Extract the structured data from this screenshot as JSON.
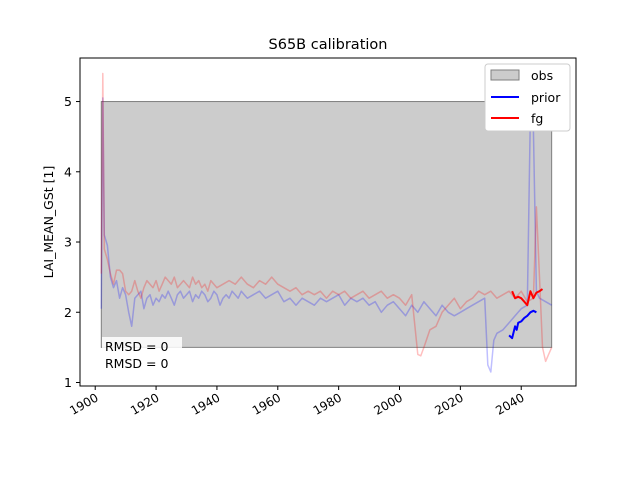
{
  "chart_data": {
    "type": "line",
    "title": "S65B calibration",
    "xlabel": "",
    "ylabel": "LAI_MEAN_GSt [1]",
    "xlim": [
      1895,
      2058
    ],
    "ylim": [
      0.95,
      5.62
    ],
    "xticks": [
      1900,
      1920,
      1940,
      1960,
      1980,
      2000,
      2020,
      2040
    ],
    "yticks": [
      1,
      2,
      3,
      4,
      5
    ],
    "grid": false,
    "legend_position": "top-right",
    "legend": [
      {
        "label": "obs",
        "kind": "patch",
        "color": "#cccccc",
        "edge": "#7f7f7f"
      },
      {
        "label": "prior",
        "kind": "line",
        "color": "#0000ff"
      },
      {
        "label": "fg",
        "kind": "line",
        "color": "#ff0000"
      }
    ],
    "obs_band": {
      "x": [
        1902,
        2050
      ],
      "ymin": 1.5,
      "ymax": 5.0,
      "color": "#cccccc"
    },
    "annotations": [
      {
        "text": "RMSD = 0",
        "color": "#0000ff"
      },
      {
        "text": "RMSD = 0",
        "color": "#ff0000"
      }
    ],
    "series": [
      {
        "color": "#0000ff",
        "alpha": 0.25,
        "style": "faint",
        "x": [
          1902,
          1902.5,
          1903,
          1904,
          1905,
          1906,
          1907,
          1908,
          1909,
          1910,
          1911,
          1912,
          1913,
          1914,
          1915,
          1916,
          1917,
          1918,
          1919,
          1920,
          1921,
          1922,
          1923,
          1924,
          1925,
          1926,
          1927,
          1928,
          1929,
          1930,
          1931,
          1932,
          1933,
          1934,
          1935,
          1936,
          1937,
          1938,
          1939,
          1940,
          1941,
          1942,
          1943,
          1944,
          1945,
          1946,
          1947,
          1948,
          1949,
          1950,
          1952,
          1954,
          1956,
          1958,
          1960,
          1962,
          1964,
          1966,
          1968,
          1970,
          1972,
          1974,
          1976,
          1978,
          1980,
          1982,
          1984,
          1986,
          1988,
          1990,
          1992,
          1994,
          1996,
          1998,
          2000,
          2002,
          2004,
          2006,
          2008,
          2010,
          2012,
          2014,
          2016,
          2018,
          2020,
          2022,
          2024,
          2026,
          2028,
          2029,
          2030,
          2031,
          2032,
          2034,
          2036,
          2038,
          2040,
          2042,
          2043,
          2044,
          2045,
          2046,
          2048,
          2050
        ],
        "y": [
          2.05,
          5.05,
          3.1,
          2.95,
          2.5,
          2.35,
          2.45,
          2.2,
          2.35,
          2.25,
          2.0,
          1.8,
          2.2,
          2.25,
          2.3,
          2.05,
          2.2,
          2.25,
          2.1,
          2.2,
          2.15,
          2.25,
          2.2,
          2.3,
          2.2,
          2.1,
          2.25,
          2.3,
          2.2,
          2.25,
          2.3,
          2.15,
          2.25,
          2.2,
          2.3,
          2.25,
          2.15,
          2.2,
          2.3,
          2.25,
          2.1,
          2.2,
          2.25,
          2.2,
          2.3,
          2.25,
          2.2,
          2.3,
          2.25,
          2.2,
          2.25,
          2.3,
          2.2,
          2.25,
          2.3,
          2.15,
          2.2,
          2.1,
          2.2,
          2.15,
          2.1,
          2.2,
          2.15,
          2.2,
          2.25,
          2.1,
          2.2,
          2.15,
          2.2,
          2.1,
          2.15,
          2.0,
          2.1,
          2.15,
          2.05,
          1.95,
          2.1,
          2.0,
          2.15,
          2.05,
          1.95,
          2.1,
          2.0,
          1.95,
          2.0,
          2.05,
          2.1,
          2.15,
          2.2,
          1.25,
          1.15,
          1.6,
          1.7,
          1.75,
          1.85,
          1.95,
          2.05,
          2.1,
          4.85,
          4.6,
          2.3,
          2.2,
          2.15,
          2.1
        ]
      },
      {
        "color": "#ff0000",
        "alpha": 0.25,
        "style": "faint",
        "x": [
          1902,
          1902.5,
          1903,
          1904,
          1905,
          1906,
          1907,
          1908,
          1909,
          1910,
          1911,
          1912,
          1913,
          1914,
          1915,
          1916,
          1917,
          1918,
          1919,
          1920,
          1921,
          1922,
          1923,
          1924,
          1925,
          1926,
          1927,
          1928,
          1929,
          1930,
          1931,
          1932,
          1933,
          1934,
          1935,
          1936,
          1937,
          1938,
          1939,
          1940,
          1942,
          1944,
          1946,
          1948,
          1950,
          1952,
          1954,
          1956,
          1958,
          1960,
          1962,
          1964,
          1966,
          1968,
          1970,
          1972,
          1974,
          1976,
          1978,
          1980,
          1982,
          1984,
          1986,
          1988,
          1990,
          1992,
          1994,
          1996,
          1998,
          2000,
          2002,
          2004,
          2006,
          2007,
          2008,
          2010,
          2012,
          2014,
          2016,
          2018,
          2020,
          2022,
          2024,
          2026,
          2028,
          2030,
          2032,
          2034,
          2036,
          2038,
          2040,
          2042,
          2044,
          2045,
          2046,
          2047,
          2048,
          2049,
          2050
        ],
        "y": [
          2.55,
          5.4,
          2.9,
          2.75,
          2.55,
          2.4,
          2.6,
          2.6,
          2.55,
          2.3,
          2.25,
          2.3,
          2.45,
          2.3,
          2.2,
          2.35,
          2.45,
          2.4,
          2.35,
          2.45,
          2.3,
          2.4,
          2.5,
          2.45,
          2.4,
          2.5,
          2.35,
          2.4,
          2.45,
          2.4,
          2.35,
          2.5,
          2.4,
          2.45,
          2.35,
          2.4,
          2.3,
          2.45,
          2.4,
          2.35,
          2.4,
          2.45,
          2.4,
          2.5,
          2.4,
          2.35,
          2.45,
          2.4,
          2.5,
          2.4,
          2.35,
          2.3,
          2.35,
          2.25,
          2.3,
          2.25,
          2.3,
          2.2,
          2.3,
          2.25,
          2.3,
          2.2,
          2.25,
          2.3,
          2.2,
          2.25,
          2.3,
          2.2,
          2.25,
          2.2,
          2.1,
          2.25,
          1.4,
          1.38,
          1.5,
          1.75,
          1.8,
          2.0,
          2.1,
          2.2,
          2.05,
          2.15,
          2.2,
          2.3,
          2.25,
          2.3,
          2.2,
          2.25,
          2.3,
          2.2,
          2.3,
          2.15,
          2.2,
          3.5,
          2.5,
          1.5,
          1.3,
          1.4,
          1.5
        ]
      },
      {
        "name": "prior",
        "color": "#0000ff",
        "alpha": 1,
        "style": "solid",
        "x": [
          2036,
          2037,
          2038,
          2038.5,
          2039,
          2040,
          2041,
          2042,
          2043,
          2044,
          2045
        ],
        "y": [
          1.67,
          1.63,
          1.8,
          1.75,
          1.85,
          1.87,
          1.92,
          1.95,
          2.0,
          2.02,
          2.0
        ]
      },
      {
        "name": "fg",
        "color": "#ff0000",
        "alpha": 1,
        "style": "solid",
        "x": [
          2037,
          2038,
          2039,
          2040,
          2041,
          2042,
          2043,
          2044,
          2045,
          2046,
          2047
        ],
        "y": [
          2.3,
          2.2,
          2.22,
          2.2,
          2.15,
          2.1,
          2.3,
          2.2,
          2.28,
          2.3,
          2.33
        ]
      }
    ]
  }
}
